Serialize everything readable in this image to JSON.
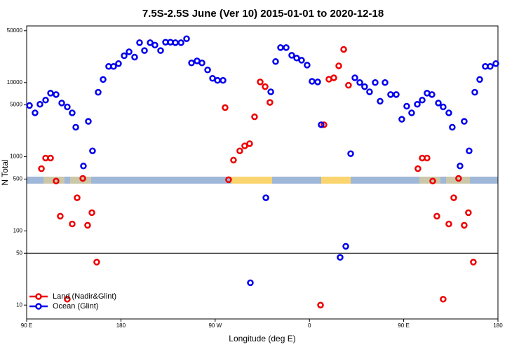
{
  "chart_data": {
    "type": "scatter",
    "title": "7.5S-2.5S June (Ver 10)   2015-01-01 to 2020-12-18",
    "x_label": "Longitude (deg E)",
    "y_label": "N Total",
    "xlim": [
      90,
      540
    ],
    "ylim": [
      6.5,
      58000
    ],
    "log_y": true,
    "xticks": [
      {
        "value": 90,
        "label": "90 E"
      },
      180,
      {
        "value": 270,
        "label": "90 W"
      },
      {
        "value": 360,
        "label": "0"
      },
      {
        "value": 450,
        "label": "90 E"
      },
      {
        "value": 540,
        "label": "180"
      }
    ],
    "yticks": [
      10,
      50,
      100,
      500,
      1000,
      5000,
      10000,
      50000
    ],
    "reference_line": 50,
    "legend": "bottom-left",
    "series": [
      {
        "name": "Land (Nadir&Glint)",
        "color": "#ee0000",
        "x": [
          104.1,
          108.1,
          112.8,
          118.1,
          122.1,
          128.8,
          133.5,
          138.2,
          143.6,
          148.2,
          152.3,
          156.9,
          279.5,
          282.8,
          287.5,
          293.5,
          298.2,
          302.9,
          307.6,
          313.0,
          317.7,
          322.3,
          370.6,
          373.9,
          378.6,
          383.3,
          388.0,
          392.7,
          397.3,
          463.6,
          467.7,
          472.3,
          477.7,
          481.7,
          487.7,
          493.1,
          497.8,
          502.4,
          507.8,
          511.8,
          516.5
        ],
        "values": [
          690,
          960,
          960,
          470,
          158,
          12,
          124,
          280,
          510,
          119,
          176,
          38,
          4600,
          490,
          900,
          1200,
          1400,
          1500,
          3450,
          10200,
          8800,
          5400,
          10,
          2700,
          11100,
          11600,
          16800,
          28000,
          9200,
          690,
          960,
          960,
          470,
          158,
          12,
          124,
          280,
          510,
          119,
          176,
          38
        ]
      },
      {
        "name": "Ocean (Glint)",
        "color": "#0000ee",
        "x": [
          92.7,
          98.0,
          102.7,
          108.1,
          112.8,
          118.1,
          123.5,
          128.8,
          133.5,
          136.9,
          144.2,
          148.9,
          152.9,
          158.3,
          163.0,
          168.3,
          173.0,
          177.7,
          183.1,
          187.8,
          193.1,
          197.8,
          202.5,
          207.9,
          212.5,
          217.9,
          222.6,
          227.3,
          232.0,
          237.4,
          242.7,
          247.4,
          252.7,
          257.4,
          262.8,
          267.5,
          272.2,
          277.5,
          303.6,
          318.4,
          323.1,
          327.7,
          332.4,
          337.8,
          343.1,
          347.8,
          352.5,
          357.8,
          362.5,
          367.9,
          371.2,
          389.3,
          394.7,
          399.4,
          403.4,
          408.1,
          412.7,
          417.4,
          422.8,
          427.5,
          432.2,
          437.5,
          442.9,
          448.2,
          452.9,
          457.6,
          463.0,
          467.7,
          472.3,
          477.0,
          483.1,
          487.7,
          493.1,
          496.4,
          503.8,
          507.8,
          512.5,
          517.9,
          522.6,
          527.9,
          532.6,
          538.0
        ],
        "values": [
          4900,
          3900,
          5100,
          5800,
          7200,
          6900,
          5300,
          4700,
          3900,
          2500,
          750,
          3000,
          1200,
          7400,
          11000,
          16500,
          16500,
          18000,
          23000,
          26000,
          22000,
          34500,
          27000,
          34500,
          32000,
          27000,
          35000,
          35000,
          34500,
          34500,
          39000,
          18400,
          19600,
          18400,
          14800,
          11400,
          10700,
          10700,
          20,
          280,
          7500,
          19200,
          29600,
          29600,
          23300,
          21400,
          20000,
          17200,
          10400,
          10200,
          2700,
          44,
          62,
          1100,
          11600,
          10000,
          8800,
          7500,
          10000,
          5600,
          10000,
          6900,
          6900,
          3200,
          4800,
          3900,
          5100,
          5800,
          7200,
          6900,
          5300,
          4700,
          3900,
          2500,
          750,
          3000,
          1200,
          7400,
          11000,
          16500,
          16500,
          18000
        ]
      }
    ]
  }
}
